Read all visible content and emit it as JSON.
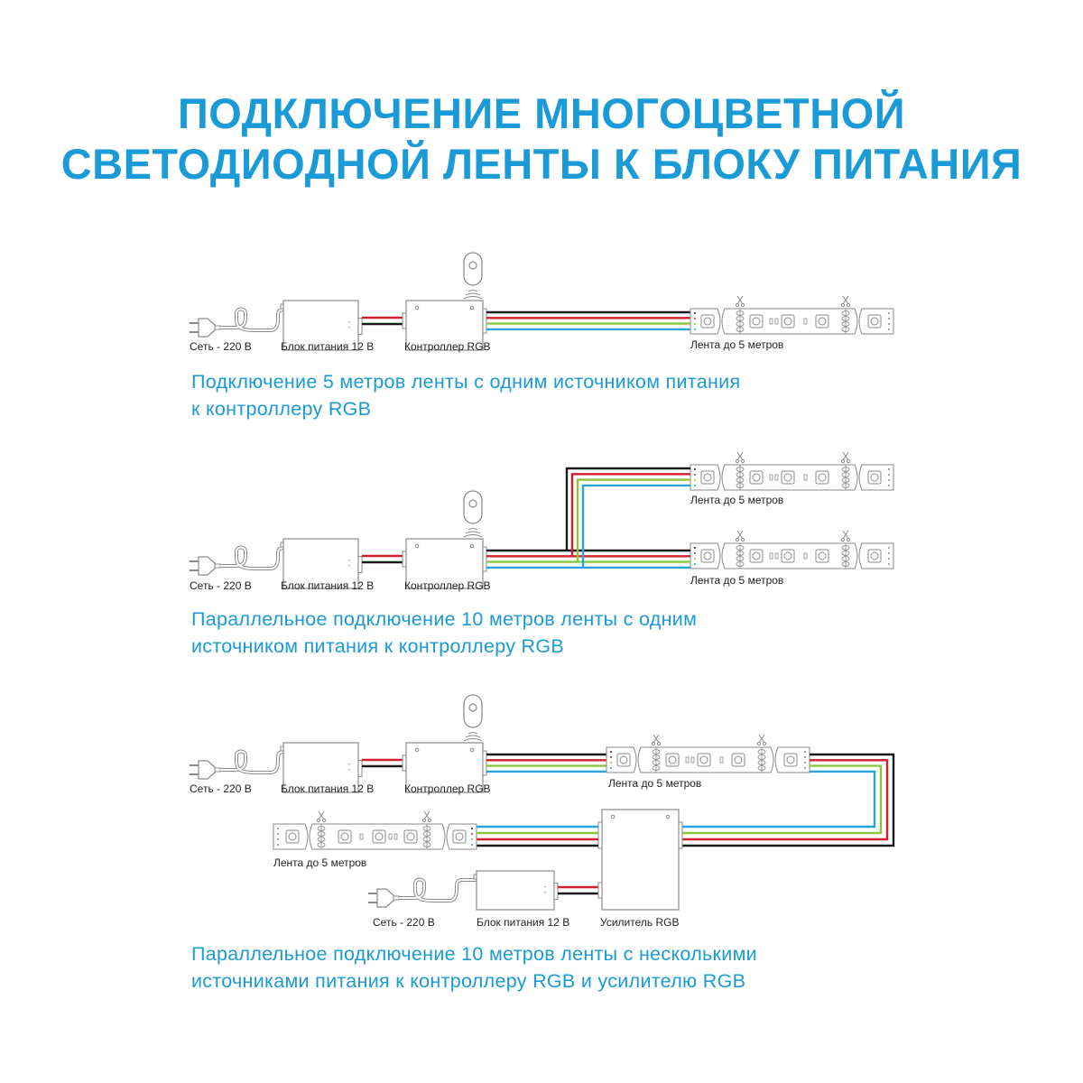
{
  "title": {
    "line1": "ПОДКЛЮЧЕНИЕ МНОГОЦВЕТНОЙ",
    "line2": "СВЕТОДИОДНОЙ ЛЕНТЫ К БЛОКУ ПИТАНИЯ"
  },
  "colors": {
    "accent": "#1a9ad6",
    "wire_black": "#1a1a1a",
    "wire_red": "#d0202e",
    "wire_green": "#8cc63f",
    "wire_blue": "#29a3dc",
    "outline": "#8a8a8a"
  },
  "labels": {
    "mains": "Сеть - 220 В",
    "psu": "Блок питания 12 В",
    "controller": "Контроллер RGB",
    "strip": "Лента до 5 метров",
    "amplifier": "Усилитель RGB"
  },
  "diagrams": [
    {
      "caption_line1": "Подключение 5 метров ленты с одним источником питания",
      "caption_line2": "к контроллеру RGB"
    },
    {
      "caption_line1": "Параллельное подключение 10 метров ленты с одним",
      "caption_line2": "источником питания к контроллеру RGB"
    },
    {
      "caption_line1": "Параллельное подключение 10 метров ленты с несколькими",
      "caption_line2": "источниками питания к контроллеру RGB и усилителю RGB"
    }
  ]
}
